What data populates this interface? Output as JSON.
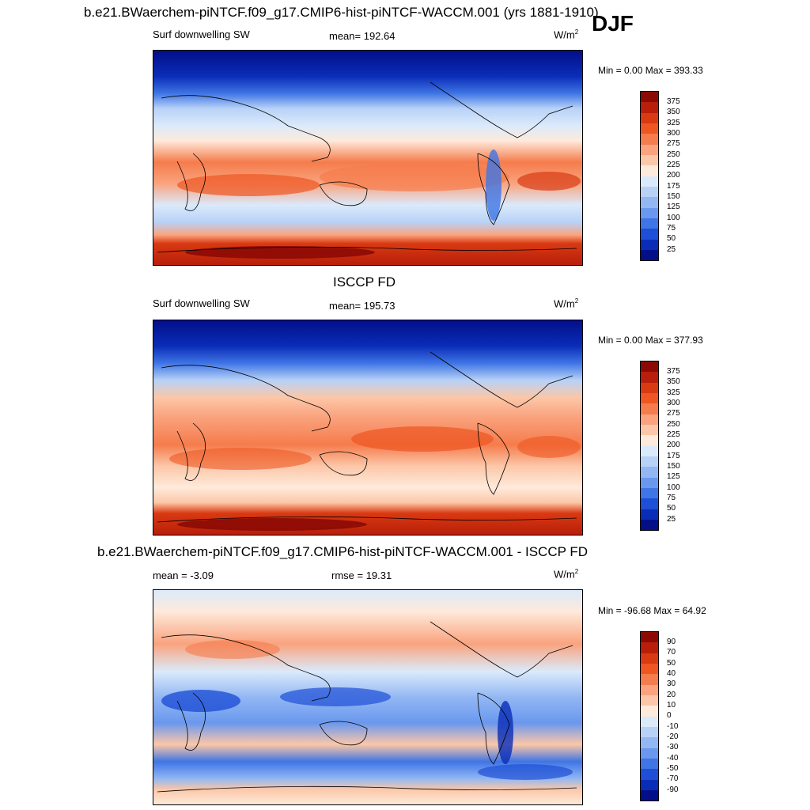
{
  "season": "DJF",
  "panels": [
    {
      "title": "b.e21.BWaerchem-piNTCF.f09_g17.CMIP6-hist-piNTCF-WACCM.001 (yrs 1881-1910)",
      "left": "Surf downwelling SW",
      "center": "mean= 192.64",
      "units_base": "W/m",
      "units_exp": "2",
      "minmax": "Min =   0.00 Max = 393.33",
      "colorbar_labels": [
        "375",
        "350",
        "325",
        "300",
        "275",
        "250",
        "225",
        "200",
        "175",
        "150",
        "125",
        "100",
        "75",
        "50",
        "25"
      ],
      "colors": [
        "#8b0a04",
        "#b81e0a",
        "#d93a12",
        "#ee5622",
        "#f57c4c",
        "#faa37e",
        "#fcc7a8",
        "#feeadb",
        "#dbeafb",
        "#b8d2f7",
        "#92b7f3",
        "#6a98ee",
        "#3f75e5",
        "#1e4fd6",
        "#0a2db8",
        "#020f88"
      ]
    },
    {
      "title": "ISCCP FD",
      "left": "Surf downwelling SW",
      "center": "mean= 195.73",
      "units_base": "W/m",
      "units_exp": "2",
      "minmax": "Min =   0.00 Max = 377.93",
      "colorbar_labels": [
        "375",
        "350",
        "325",
        "300",
        "275",
        "250",
        "225",
        "200",
        "175",
        "150",
        "125",
        "100",
        "75",
        "50",
        "25"
      ],
      "colors": [
        "#8b0a04",
        "#b81e0a",
        "#d93a12",
        "#ee5622",
        "#f57c4c",
        "#faa37e",
        "#fcc7a8",
        "#feeadb",
        "#dbeafb",
        "#b8d2f7",
        "#92b7f3",
        "#6a98ee",
        "#3f75e5",
        "#1e4fd6",
        "#0a2db8",
        "#020f88"
      ]
    },
    {
      "title": "b.e21.BWaerchem-piNTCF.f09_g17.CMIP6-hist-piNTCF-WACCM.001 - ISCCP FD",
      "left": "mean =  -3.09",
      "center": "rmse =  19.31",
      "units_base": "W/m",
      "units_exp": "2",
      "minmax": "Min = -96.68 Max =  64.92",
      "colorbar_labels": [
        "90",
        "70",
        "50",
        "40",
        "30",
        "20",
        "10",
        "0",
        "-10",
        "-20",
        "-30",
        "-40",
        "-50",
        "-70",
        "-90"
      ],
      "colors": [
        "#8b0a04",
        "#b81e0a",
        "#d93a12",
        "#ee5622",
        "#f57c4c",
        "#faa37e",
        "#fcc7a8",
        "#feeadb",
        "#dbeafb",
        "#b8d2f7",
        "#92b7f3",
        "#6a98ee",
        "#3f75e5",
        "#1e4fd6",
        "#0a2db8",
        "#020f88"
      ]
    }
  ]
}
